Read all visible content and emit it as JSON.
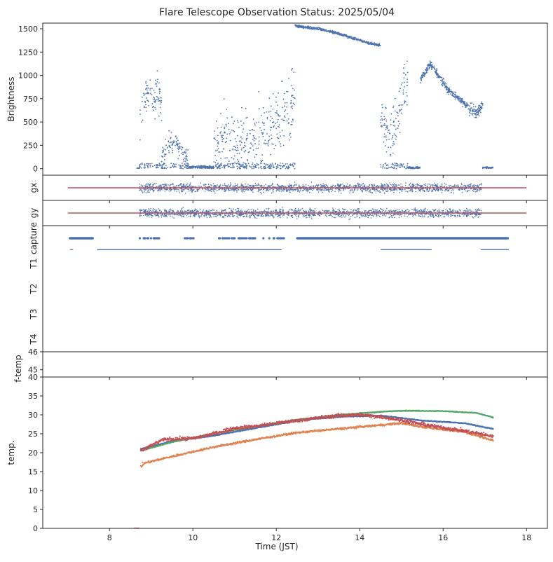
{
  "figure": {
    "title": "Flare Telescope Observation Status: 2025/05/04",
    "xlabel": "Time (JST)"
  },
  "colors": {
    "blue": "#4c72b0",
    "orange": "#dd8452",
    "green": "#55a868",
    "red": "#c44e52",
    "frame": "#262626"
  },
  "chart_data": [
    {
      "id": "brightness",
      "type": "scatter",
      "ylabel": "Brightness",
      "xlim": [
        6.4,
        18.5
      ],
      "ylim": [
        -70,
        1560
      ],
      "yticks": [
        0,
        250,
        500,
        750,
        1000,
        1250,
        1500
      ],
      "series": [
        {
          "color": "#4c72b0",
          "segments": [
            {
              "x": [
                8.65,
                8.72
              ],
              "y": [
                5,
                5
              ],
              "noise": 0
            },
            {
              "x": [
                8.72,
                8.8,
                8.9,
                9.0,
                9.08,
                9.15,
                9.25
              ],
              "y": [
                450,
                650,
                800,
                820,
                700,
                850,
                700
              ],
              "noise": 180
            },
            {
              "x": [
                9.25,
                9.4,
                9.6,
                9.9
              ],
              "y": [
                100,
                250,
                300,
                80
              ],
              "noise": 120
            },
            {
              "x": [
                9.9,
                10.5
              ],
              "y": [
                15,
                15
              ],
              "noise": 15
            },
            {
              "x": [
                10.5,
                10.75,
                11.0,
                11.5,
                12.0,
                12.45
              ],
              "y": [
                150,
                350,
                250,
                300,
                500,
                700
              ],
              "noise": 350
            },
            {
              "x": [
                12.45,
                12.6,
                13.0,
                13.4,
                13.8,
                14.2,
                14.5
              ],
              "y": [
                1535,
                1520,
                1500,
                1460,
                1405,
                1350,
                1320
              ],
              "noise": 12
            },
            {
              "x": [
                14.5,
                14.7,
                14.9,
                15.05,
                15.15
              ],
              "y": [
                600,
                300,
                500,
                800,
                1000
              ],
              "noise": 280
            },
            {
              "x": [
                15.15,
                15.45
              ],
              "y": [
                10,
                10
              ],
              "noise": 10
            },
            {
              "x": [
                15.45,
                15.7,
                15.9,
                16.1,
                16.3,
                16.5,
                16.6
              ],
              "y": [
                950,
                1120,
                1000,
                850,
                780,
                700,
                660
              ],
              "noise": 40
            },
            {
              "x": [
                16.6,
                16.8,
                16.95
              ],
              "y": [
                650,
                600,
                680
              ],
              "noise": 60
            },
            {
              "x": [
                16.95,
                17.2
              ],
              "y": [
                10,
                10
              ],
              "noise": 8
            }
          ]
        }
      ]
    },
    {
      "id": "gx",
      "type": "scatter",
      "ylabel": "gx",
      "xlim": [
        6.4,
        18.5
      ],
      "ylim": [
        -1,
        1
      ],
      "series": [
        {
          "color": "#4c72b0",
          "x_range": [
            8.72,
            16.92
          ],
          "center": 0,
          "spread": 0.6
        },
        {
          "color": "#c44e52",
          "kind": "line",
          "x": [
            7.0,
            18.0
          ],
          "y": [
            0,
            0
          ]
        }
      ]
    },
    {
      "id": "gy",
      "type": "scatter",
      "ylabel": "gy",
      "xlim": [
        6.4,
        18.5
      ],
      "ylim": [
        -1,
        1
      ],
      "series": [
        {
          "color": "#4c72b0",
          "x_range": [
            8.72,
            16.92
          ],
          "center": 0,
          "spread": 0.6
        },
        {
          "color": "#c44e52",
          "kind": "line",
          "x": [
            7.0,
            18.0
          ],
          "y": [
            0,
            0
          ]
        }
      ]
    },
    {
      "id": "status",
      "type": "scatter",
      "xlim": [
        6.4,
        18.5
      ],
      "ylim": [
        5.5,
        0.5
      ],
      "categories": [
        "capture",
        "T1",
        "T2",
        "T3",
        "T4"
      ],
      "series": [
        {
          "color": "#4c72b0",
          "level": 1.0,
          "ranges": [
            [
              7.05,
              7.6
            ],
            [
              8.7,
              9.2
            ],
            [
              9.8,
              10.05
            ],
            [
              10.6,
              12.2
            ],
            [
              12.5,
              17.55
            ]
          ],
          "dense_ranges": [
            [
              7.05,
              7.6
            ],
            [
              12.5,
              17.55
            ]
          ]
        },
        {
          "color": "#4c72b0",
          "level": 1.45,
          "ranges": [
            [
              7.05,
              7.1
            ],
            [
              7.7,
              12.1
            ],
            [
              14.5,
              15.7
            ],
            [
              16.9,
              17.55
            ]
          ]
        }
      ]
    },
    {
      "id": "f-temp",
      "type": "scatter",
      "ylabel": "f-temp",
      "xlim": [
        6.4,
        18.5
      ],
      "ylim": [
        44.6,
        46
      ],
      "yticks": [
        45,
        46
      ],
      "series": []
    },
    {
      "id": "temp",
      "type": "line",
      "ylabel": "temp.",
      "xlim": [
        6.4,
        18.5
      ],
      "ylim": [
        0,
        40
      ],
      "yticks": [
        0,
        5,
        10,
        15,
        20,
        25,
        30,
        35,
        40
      ],
      "xticks": [
        8,
        10,
        12,
        14,
        16,
        18
      ],
      "series": [
        {
          "color": "#4c72b0",
          "x": [
            8.75,
            9.5,
            10.5,
            11.5,
            12.5,
            13.5,
            14.5,
            15.5,
            16.5,
            17.2
          ],
          "y": [
            21.0,
            23.0,
            24.5,
            26.5,
            28.5,
            29.5,
            29.8,
            28.5,
            27.8,
            26.3
          ],
          "noise": 0.12
        },
        {
          "color": "#dd8452",
          "x": [
            8.75,
            9.5,
            10.5,
            11.5,
            12.5,
            13.5,
            14.5,
            15.0,
            15.5,
            16.5,
            17.2
          ],
          "y": [
            17.0,
            19.0,
            21.5,
            23.5,
            25.3,
            26.3,
            27.3,
            27.8,
            26.8,
            25.5,
            23.3
          ],
          "noise": 0.25
        },
        {
          "color": "#55a868",
          "x": [
            8.75,
            9.5,
            10.5,
            11.5,
            12.5,
            13.5,
            14.5,
            15.0,
            16.0,
            16.8,
            17.2
          ],
          "y": [
            20.5,
            22.8,
            25.0,
            27.0,
            28.7,
            30.0,
            30.8,
            31.1,
            31.0,
            30.5,
            29.3
          ],
          "noise": 0.1
        },
        {
          "color": "#c44e52",
          "x": [
            8.75,
            9.3,
            10.0,
            10.5,
            11.0,
            11.5,
            12.0,
            12.5,
            13.0,
            13.5,
            14.0,
            14.5,
            15.0,
            15.5,
            16.0,
            16.5,
            17.2
          ],
          "y": [
            20.5,
            23.5,
            23.8,
            25.0,
            26.5,
            27.0,
            27.8,
            28.5,
            29.2,
            29.8,
            30.0,
            29.5,
            28.6,
            27.5,
            26.6,
            25.8,
            24.3
          ],
          "noise": 0.45
        },
        {
          "color": "#c44e52",
          "x": [
            8.6,
            8.7
          ],
          "y": [
            0,
            0
          ],
          "noise": 0
        }
      ]
    }
  ]
}
